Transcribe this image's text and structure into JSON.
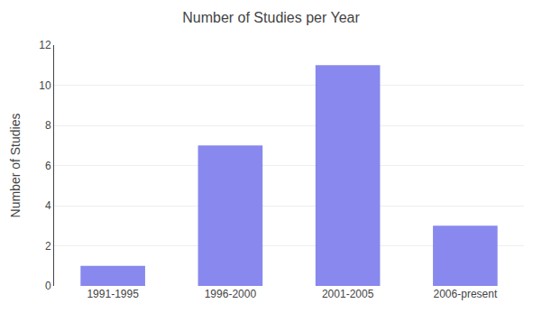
{
  "chart_data": {
    "type": "bar",
    "title": "Number of Studies per Year",
    "ylabel": "Number of Studies",
    "categories": [
      "1991-1995",
      "1996-2000",
      "2001-2005",
      "2006-present"
    ],
    "values": [
      1,
      7,
      11,
      3
    ],
    "color": "#8888ee",
    "ylim": [
      0,
      12
    ],
    "yticks": [
      0,
      2,
      4,
      6,
      8,
      10,
      12
    ],
    "grid": true
  }
}
